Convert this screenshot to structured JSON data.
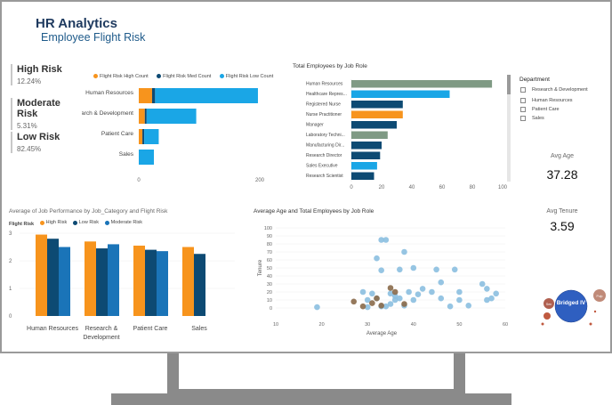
{
  "header": {
    "title": "HR Analytics",
    "subtitle": "Employee Flight Risk"
  },
  "kpis": [
    {
      "label": "High Risk",
      "value": "12.24%"
    },
    {
      "label": "Moderate Risk",
      "value": "5.31%"
    },
    {
      "label": "Low Risk",
      "value": "82.45%"
    }
  ],
  "slicer": {
    "title": "Department",
    "items": [
      "Research & Development",
      "Human Resources",
      "Patient Care",
      "Sales"
    ]
  },
  "cards": {
    "avg_age": {
      "label": "Avg Age",
      "value": "37.28"
    },
    "avg_tenure": {
      "label": "Avg Tenure",
      "value": "3.59"
    }
  },
  "colors": {
    "orange": "#f7941d",
    "navy": "#0d4a73",
    "blue": "#1aa6e6",
    "sage": "#7f9a84",
    "scatter_blue": "#8bbfe0",
    "scatter_brown": "#8a6a4a"
  },
  "chart_data": [
    {
      "id": "dept-flight-risk",
      "type": "bar",
      "orientation": "horizontal",
      "stacked": true,
      "categories": [
        "Human Resources",
        "Research & Development",
        "Patient Care",
        "Sales"
      ],
      "series": [
        {
          "name": "Flight Risk High Count",
          "values": [
            22,
            10,
            6,
            0
          ]
        },
        {
          "name": "Flight Risk Med Count",
          "values": [
            5,
            3,
            3,
            0
          ]
        },
        {
          "name": "Flight Risk Low Count",
          "values": [
            170,
            82,
            24,
            25
          ]
        }
      ],
      "xlim": [
        0,
        250
      ],
      "x_ticks": [
        0,
        200
      ]
    },
    {
      "id": "employees-by-role",
      "type": "bar",
      "orientation": "horizontal",
      "title": "Total Employees by Job Role",
      "categories": [
        "Human Resources",
        "Healthcare Repres...",
        "Registered Nurse",
        "Nurse Practitioner",
        "Manager",
        "Laboratory Techni...",
        "Manufacturing Dir...",
        "Research Director",
        "Sales Executive",
        "Research Scientist"
      ],
      "values": [
        93,
        65,
        34,
        34,
        30,
        24,
        20,
        19,
        17,
        15
      ],
      "bar_colors": [
        "#7f9a84",
        "#1aa6e6",
        "#0d4a73",
        "#f7941d",
        "#0d4a73",
        "#7f9a84",
        "#0d4a73",
        "#0d4a73",
        "#1aa6e6",
        "#0d4a73"
      ],
      "xlim": [
        0,
        100
      ],
      "x_ticks": [
        0,
        20,
        40,
        60,
        80,
        100
      ]
    },
    {
      "id": "job-performance",
      "type": "bar",
      "title": "Average of Job Performance by Job_Category and Flight Risk",
      "legend_title": "Flight Risk",
      "categories": [
        "Human Resources",
        "Research & Development",
        "Patient Care",
        "Sales"
      ],
      "series": [
        {
          "name": "High Risk",
          "values": [
            2.95,
            2.7,
            2.55,
            2.5
          ]
        },
        {
          "name": "Low Risk",
          "values": [
            2.8,
            2.45,
            2.4,
            2.25
          ]
        },
        {
          "name": "Moderate Risk",
          "values": [
            2.5,
            2.6,
            2.35,
            null
          ]
        }
      ],
      "ylim": [
        0,
        3
      ],
      "y_ticks": [
        0,
        1,
        2,
        3
      ]
    },
    {
      "id": "age-tenure",
      "type": "scatter",
      "title": "Average Age and Total Employees by Job Role",
      "xlabel": "Average Age",
      "ylabel": "Tenure",
      "xlim": [
        10,
        60
      ],
      "ylim": [
        0,
        100
      ],
      "x_ticks": [
        10,
        20,
        30,
        40,
        50,
        60
      ],
      "y_ticks": [
        0,
        10,
        20,
        30,
        40,
        50,
        60,
        70,
        80,
        90,
        100
      ],
      "points_blue": [
        [
          33,
          85
        ],
        [
          34,
          85
        ],
        [
          32,
          62
        ],
        [
          38,
          70
        ],
        [
          33,
          47
        ],
        [
          37,
          48
        ],
        [
          40,
          50
        ],
        [
          45,
          48
        ],
        [
          49,
          48
        ],
        [
          29,
          20
        ],
        [
          30,
          10
        ],
        [
          31,
          18
        ],
        [
          32,
          12
        ],
        [
          34,
          2
        ],
        [
          35,
          5
        ],
        [
          35,
          18
        ],
        [
          36,
          10
        ],
        [
          36,
          15
        ],
        [
          37,
          12
        ],
        [
          38,
          3
        ],
        [
          39,
          20
        ],
        [
          40,
          10
        ],
        [
          41,
          17
        ],
        [
          42,
          24
        ],
        [
          44,
          20
        ],
        [
          46,
          12
        ],
        [
          46,
          32
        ],
        [
          48,
          2
        ],
        [
          50,
          10
        ],
        [
          50,
          20
        ],
        [
          52,
          3
        ],
        [
          55,
          30
        ],
        [
          56,
          24
        ],
        [
          56,
          10
        ],
        [
          57,
          12
        ],
        [
          58,
          18
        ],
        [
          30,
          1
        ],
        [
          33,
          2
        ],
        [
          19,
          1
        ]
      ],
      "points_brown": [
        [
          27,
          8
        ],
        [
          29,
          2
        ],
        [
          31,
          6
        ],
        [
          33,
          3
        ],
        [
          35,
          25
        ],
        [
          36,
          20
        ],
        [
          32,
          12
        ],
        [
          38,
          5
        ]
      ]
    }
  ],
  "bubble_chart": {
    "labels": [
      "Bridged IV",
      "Pulp",
      "Sen"
    ]
  }
}
